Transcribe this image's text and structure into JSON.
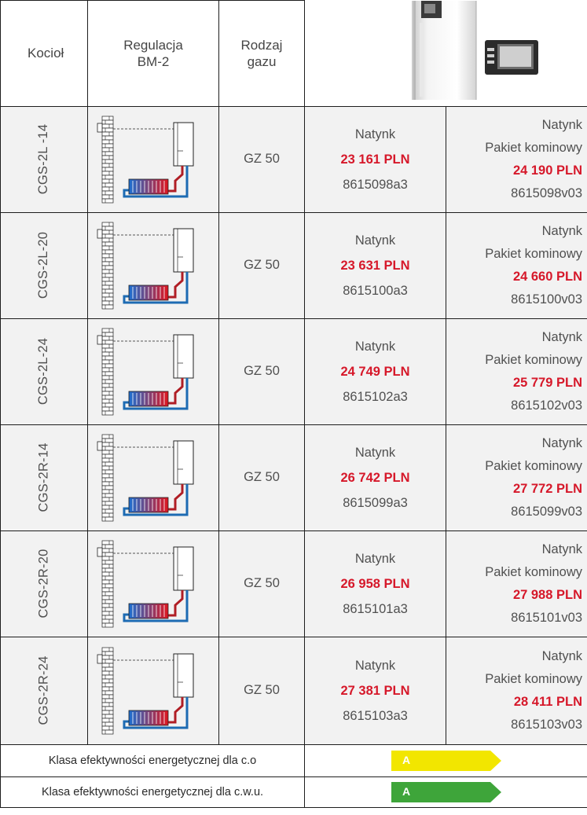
{
  "header": {
    "boiler": "Kocioł",
    "regulation": "Regulacja\nBM-2",
    "gas_type": "Rodzaj\ngazu"
  },
  "rows": [
    {
      "model": "CGS-2L -14",
      "gas": "GZ 50",
      "single_label": "Natynk",
      "single_price": "23 161 PLN",
      "single_code": "8615098a3",
      "set_label1": "Natynk",
      "set_label2": "Pakiet kominowy",
      "set_price": "24 190 PLN",
      "set_code": "8615098v03",
      "diagram": "wall-mounted-single"
    },
    {
      "model": "CGS-2L-20",
      "gas": "GZ 50",
      "single_label": "Natynk",
      "single_price": "23 631 PLN",
      "single_code": "8615100a3",
      "set_label1": "Natynk",
      "set_label2": "Pakiet kominowy",
      "set_price": "24 660 PLN",
      "set_code": "8615100v03",
      "diagram": "wall-mounted-single"
    },
    {
      "model": "CGS-2L-24",
      "gas": "GZ 50",
      "single_label": "Natynk",
      "single_price": "24 749 PLN",
      "single_code": "8615102a3",
      "set_label1": "Natynk",
      "set_label2": "Pakiet kominowy",
      "set_price": "25 779 PLN",
      "set_code": "8615102v03",
      "diagram": "wall-mounted-single"
    },
    {
      "model": "CGS-2R-14",
      "gas": "GZ 50",
      "single_label": "Natynk",
      "single_price": "26 742 PLN",
      "single_code": "8615099a3",
      "set_label1": "Natynk",
      "set_label2": "Pakiet kominowy",
      "set_price": "27 772 PLN",
      "set_code": "8615099v03",
      "diagram": "wall-mounted-single"
    },
    {
      "model": "CGS-2R-20",
      "gas": "GZ 50",
      "single_label": "Natynk",
      "single_price": "26 958 PLN",
      "single_code": "8615101a3",
      "set_label1": "Natynk",
      "set_label2": "Pakiet kominowy",
      "set_price": "27 988 PLN",
      "set_code": "8615101v03",
      "diagram": "wall-mounted-single"
    },
    {
      "model": "CGS-2R-24",
      "gas": "GZ 50",
      "single_label": "Natynk",
      "single_price": "27 381 PLN",
      "single_code": "8615103a3",
      "set_label1": "Natynk",
      "set_label2": "Pakiet kominowy",
      "set_price": "28 411 PLN",
      "set_code": "8615103v03",
      "diagram": "wall-mounted-single"
    }
  ],
  "energy": [
    {
      "label": "Klasa efektywności energetycznej dla c.o",
      "class": "A",
      "color": "#f2e600"
    },
    {
      "label": "Klasa efektywności energetycznej dla c.w.u.",
      "class": "A",
      "color": "#3ea53a"
    }
  ],
  "colors": {
    "price": "#d6182a",
    "row_bg": "#f2f2f2",
    "border": "#1e1e1e"
  },
  "icons": [
    "boiler-product-image",
    "controller-panel-image",
    "heating-schematic-icon"
  ]
}
